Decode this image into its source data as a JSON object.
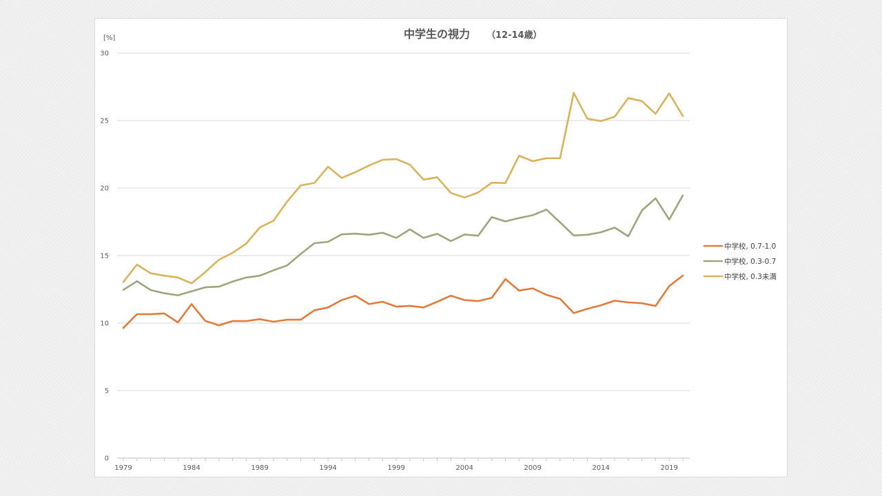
{
  "chart_data": {
    "type": "line",
    "title": "中学生の視力",
    "subtitle": "（12-14歳）",
    "ylabel": "[%]",
    "xlabel": "",
    "ylim": [
      0,
      30
    ],
    "yticks": [
      0,
      5,
      10,
      15,
      20,
      25,
      30
    ],
    "xticks": [
      1979,
      1984,
      1989,
      1994,
      1999,
      2004,
      2009,
      2014,
      2019
    ],
    "x": [
      1979,
      1980,
      1981,
      1982,
      1983,
      1984,
      1985,
      1986,
      1987,
      1988,
      1989,
      1990,
      1991,
      1992,
      1993,
      1994,
      1995,
      1996,
      1997,
      1998,
      1999,
      2000,
      2001,
      2002,
      2003,
      2004,
      2005,
      2006,
      2007,
      2008,
      2009,
      2010,
      2011,
      2012,
      2013,
      2014,
      2015,
      2016,
      2017,
      2018,
      2019,
      2020
    ],
    "grid": true,
    "legend_position": "right",
    "series": [
      {
        "name": "中学校, 0.7-1.0",
        "color": "#e07b39",
        "values": [
          9.64,
          10.66,
          10.66,
          10.72,
          10.05,
          11.41,
          10.17,
          9.83,
          10.15,
          10.15,
          10.29,
          10.1,
          10.25,
          10.25,
          10.95,
          11.16,
          11.71,
          12.02,
          11.41,
          11.58,
          11.22,
          11.28,
          11.16,
          11.58,
          12.03,
          11.71,
          11.63,
          11.88,
          13.26,
          12.41,
          12.57,
          12.09,
          11.8,
          10.74,
          11.06,
          11.32,
          11.66,
          11.53,
          11.47,
          11.27,
          12.74,
          13.52
        ]
      },
      {
        "name": "中学校, 0.3-0.7",
        "color": "#9ba77a",
        "values": [
          12.46,
          13.1,
          12.45,
          12.21,
          12.06,
          12.35,
          12.65,
          12.7,
          13.07,
          13.37,
          13.51,
          13.91,
          14.27,
          15.12,
          15.92,
          16.02,
          16.57,
          16.62,
          16.54,
          16.69,
          16.31,
          16.94,
          16.31,
          16.61,
          16.07,
          16.56,
          16.47,
          17.85,
          17.53,
          17.78,
          17.99,
          18.41,
          17.46,
          16.49,
          16.54,
          16.73,
          17.07,
          16.43,
          18.34,
          19.24,
          17.67,
          19.46
        ]
      },
      {
        "name": "中学校, 0.3未満",
        "color": "#d9b35a",
        "values": [
          13.05,
          14.33,
          13.69,
          13.51,
          13.37,
          12.95,
          13.77,
          14.69,
          15.2,
          15.88,
          17.08,
          17.58,
          19.0,
          20.2,
          20.38,
          21.58,
          20.75,
          21.18,
          21.67,
          22.09,
          22.15,
          21.73,
          20.62,
          20.8,
          19.64,
          19.3,
          19.67,
          20.4,
          20.37,
          22.4,
          21.99,
          22.21,
          22.21,
          27.05,
          25.14,
          24.96,
          25.28,
          26.67,
          26.44,
          25.5,
          27.02,
          25.33
        ]
      }
    ]
  }
}
